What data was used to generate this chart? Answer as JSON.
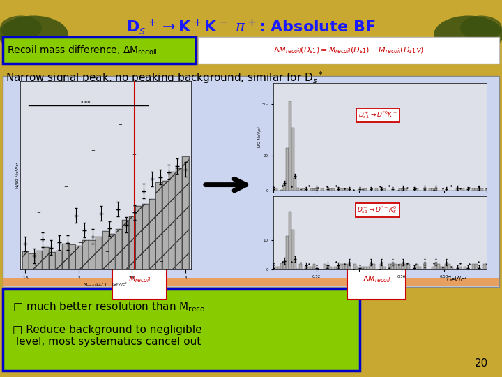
{
  "title": "D$_s$$^+$$\\rightarrow$K$^+$K$^-$ $\\pi$$^+$: Absolute BF",
  "background_color": "#c8a830",
  "title_color": "#1a1aff",
  "recoil_box_text": "Recoil mass difference, $\\Delta$M$_{\\mathsf{recoil}}$",
  "recoil_box_bg": "#88cc00",
  "recoil_box_border": "#0000cc",
  "formula_box_bg": "#ffffff",
  "formula_text": "$\\Delta M_{recoil}(D_{s1}) = M_{recoil}(D_{s1})-M_{recoil}(D_{s1}\\gamma)$",
  "formula_color": "#cc0000",
  "narrow_text": "Narrow signal peak, no peaking background, similar for D$_s$$^*$",
  "narrow_color": "#000000",
  "plot_bg": "#ccd5f0",
  "plot_border": "#888888",
  "bullet_box_bg": "#88cc00",
  "bullet_box_border": "#0000cc",
  "bullet1": " much better resolution than M$_{\\mathsf{recoil}}$",
  "bullet2": " Reduce background to negligible\n level, most systematics cancel out",
  "bullet_color": "#000000",
  "page_num": "20",
  "label_ds1_k": "$D_{s1}^+ \\rightarrow D^{*0}K^+$",
  "label_ds1_ks": "$D_{s1}^+ \\rightarrow D^{*+}K_S^0$",
  "mrecoil_label": "$M_{recoil}$",
  "delta_mrecoil_label": "$\\Delta M_{recoil}$",
  "left_hist_color": "#b0b0b0",
  "right_hist_color": "#b0b0b0",
  "red_line_color": "#cc0000",
  "label_border_color": "#cc0000",
  "label_bg_color": "#ffffff"
}
